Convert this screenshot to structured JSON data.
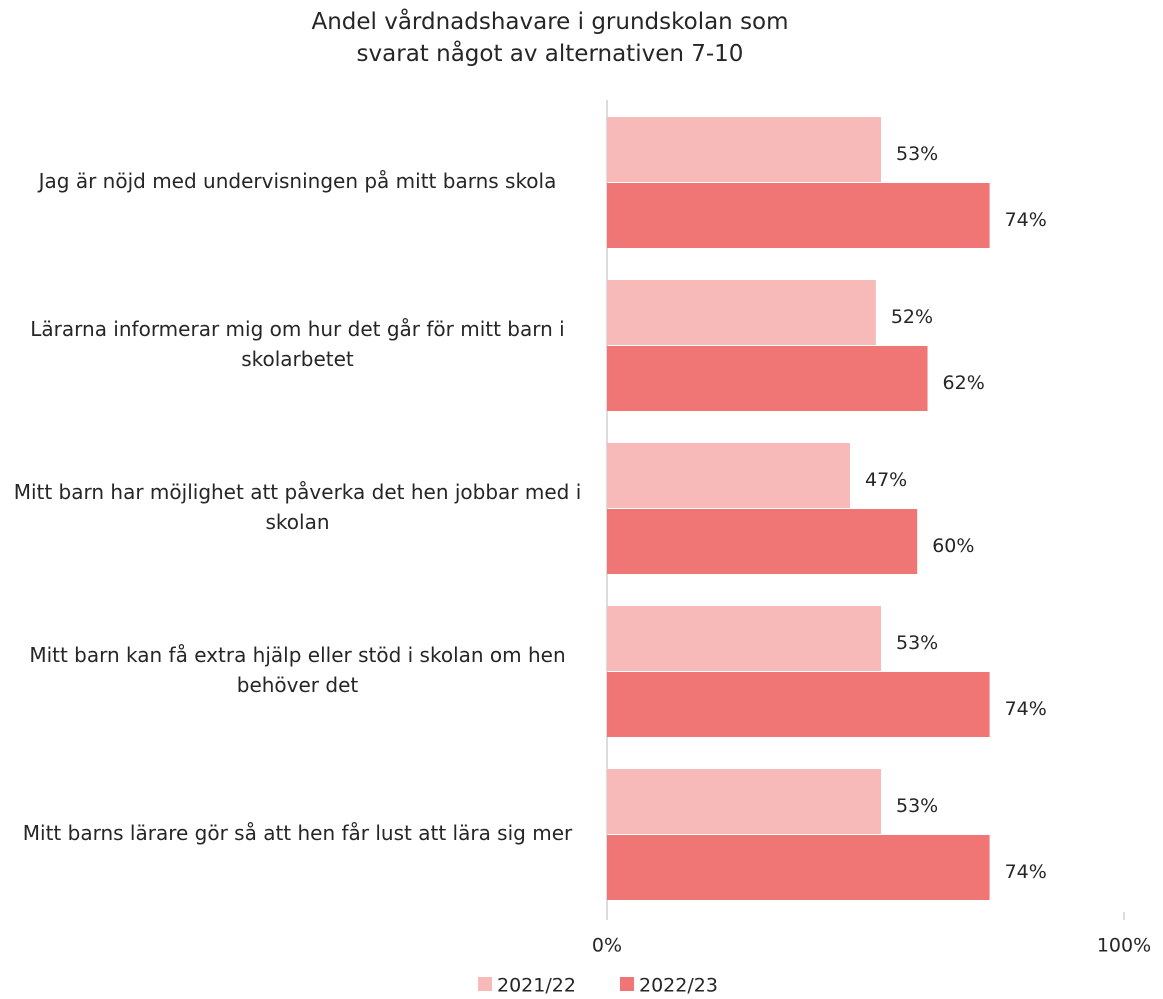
{
  "chart_data": {
    "type": "barh",
    "title": "Andel vårdnadshavare i grundskolan som svarat något av alternativen 7-10",
    "categories": [
      "Jag är nöjd med undervisningen på mitt barns skola",
      "Lärarna informerar mig om hur det går för mitt barn i skolarbetet",
      "Mitt barn har möjlighet att påverka det hen jobbar med i skolan",
      "Mitt barn kan få extra hjälp eller stöd i skolan om hen behöver det",
      "Mitt barns lärare gör så att hen får lust att lära sig mer"
    ],
    "series": [
      {
        "name": "2021/22",
        "color": "#f8b9b9",
        "values": [
          53,
          52,
          47,
          53,
          53
        ],
        "value_labels": [
          "53%",
          "52%",
          "47%",
          "53%",
          "53%"
        ]
      },
      {
        "name": "2022/23",
        "color": "#f07575",
        "values": [
          74,
          62,
          60,
          74,
          74
        ],
        "value_labels": [
          "74%",
          "62%",
          "60%",
          "74%",
          "74%"
        ]
      }
    ],
    "xlim": [
      0,
      100
    ],
    "xticks": [
      {
        "value": 0,
        "label": "0%"
      },
      {
        "value": 100,
        "label": "100%"
      }
    ],
    "legend": "bottom"
  }
}
